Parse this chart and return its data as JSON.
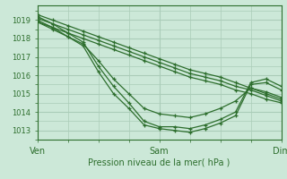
{
  "title": "Pression niveau de la mer( hPa )",
  "background_color": "#cce8d8",
  "grid_color": "#aaccb8",
  "line_color": "#2d6e2d",
  "xlim": [
    0,
    48
  ],
  "ylim": [
    1012.5,
    1019.8
  ],
  "yticks": [
    1013,
    1014,
    1015,
    1016,
    1017,
    1018,
    1019
  ],
  "xtick_positions": [
    0,
    24,
    48
  ],
  "xtick_labels": [
    "Ven",
    "Sam",
    "Dim"
  ],
  "lines": [
    {
      "x": [
        0,
        3,
        6,
        9,
        12,
        15,
        18,
        21,
        24,
        27,
        30,
        33,
        36,
        39,
        42,
        45,
        48
      ],
      "y": [
        1019.3,
        1019.0,
        1018.7,
        1018.4,
        1018.1,
        1017.8,
        1017.5,
        1017.2,
        1016.9,
        1016.6,
        1016.3,
        1016.1,
        1015.9,
        1015.6,
        1015.3,
        1015.1,
        1014.8
      ]
    },
    {
      "x": [
        0,
        3,
        6,
        9,
        12,
        15,
        18,
        21,
        24,
        27,
        30,
        33,
        36,
        39,
        42,
        45,
        48
      ],
      "y": [
        1019.1,
        1018.8,
        1018.5,
        1018.2,
        1017.9,
        1017.6,
        1017.3,
        1017.0,
        1016.7,
        1016.4,
        1016.1,
        1015.9,
        1015.7,
        1015.4,
        1015.2,
        1014.9,
        1014.6
      ]
    },
    {
      "x": [
        0,
        3,
        6,
        9,
        12,
        15,
        18,
        21,
        24,
        27,
        30,
        33,
        36,
        39,
        42,
        45,
        48
      ],
      "y": [
        1018.9,
        1018.6,
        1018.3,
        1018.0,
        1017.7,
        1017.4,
        1017.1,
        1016.8,
        1016.5,
        1016.2,
        1015.9,
        1015.7,
        1015.5,
        1015.2,
        1015.0,
        1014.7,
        1014.5
      ]
    },
    {
      "x": [
        0,
        3,
        6,
        9,
        12,
        15,
        18,
        21,
        24,
        27,
        30,
        33,
        36,
        39,
        42,
        45,
        48
      ],
      "y": [
        1019.2,
        1018.8,
        1018.3,
        1017.8,
        1016.5,
        1015.4,
        1014.5,
        1013.5,
        1013.2,
        1013.2,
        1013.1,
        1013.3,
        1013.6,
        1014.0,
        1015.6,
        1015.8,
        1015.4
      ]
    },
    {
      "x": [
        0,
        3,
        6,
        9,
        12,
        15,
        18,
        21,
        24,
        27,
        30,
        33,
        36,
        39,
        42,
        45,
        48
      ],
      "y": [
        1019.0,
        1018.6,
        1018.1,
        1017.6,
        1016.2,
        1015.0,
        1014.2,
        1013.3,
        1013.1,
        1013.0,
        1012.9,
        1013.1,
        1013.4,
        1013.8,
        1015.5,
        1015.6,
        1015.2
      ]
    },
    {
      "x": [
        0,
        3,
        6,
        9,
        12,
        15,
        18,
        21,
        24,
        27,
        30,
        33,
        36,
        39,
        42,
        45,
        48
      ],
      "y": [
        1018.9,
        1018.5,
        1018.1,
        1017.7,
        1016.8,
        1015.8,
        1015.0,
        1014.2,
        1013.9,
        1013.8,
        1013.7,
        1013.9,
        1014.2,
        1014.6,
        1015.3,
        1015.0,
        1014.7
      ]
    }
  ]
}
